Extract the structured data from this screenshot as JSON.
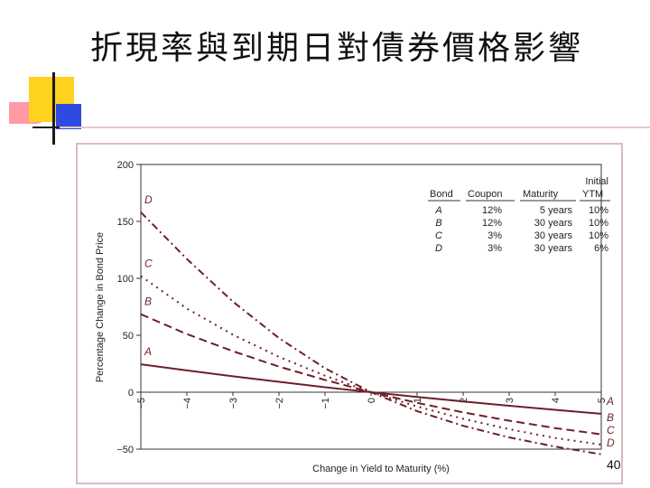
{
  "slide": {
    "title": "折現率與到期日對債券價格影響",
    "page_number": "40"
  },
  "colors": {
    "curve": "#6e1f2a",
    "deco_yellow": "#ffd21f",
    "deco_blue": "#2d4be0",
    "deco_pink": "#ff9aa6"
  },
  "chart_data": {
    "type": "line",
    "title": "",
    "xlabel": "Change in Yield to Maturity (%)",
    "ylabel": "Percentage Change in Bond Price",
    "xlim": [
      -5,
      5
    ],
    "ylim": [
      -50,
      200
    ],
    "grid": false,
    "x_ticks": [
      -5,
      -4,
      -3,
      -2,
      -1,
      0,
      1,
      2,
      3,
      4,
      5
    ],
    "x_tick_labels": [
      "−5",
      "−4",
      "−3",
      "−2",
      "−1",
      "0",
      "1",
      "2",
      "3",
      "4",
      "5"
    ],
    "y_ticks": [
      200,
      150,
      100,
      50,
      0,
      -50
    ],
    "y_tick_labels": [
      "200",
      "150",
      "100",
      "50",
      "0",
      "−50"
    ],
    "table": {
      "headers": [
        "Bond",
        "Coupon",
        "Maturity",
        "Initial YTM"
      ],
      "header_line1": [
        "",
        "",
        "",
        "Initial"
      ],
      "header_line2": [
        "Bond",
        "Coupon",
        "Maturity",
        "YTM"
      ],
      "rows": [
        [
          "A",
          "12%",
          "5 years",
          "10%"
        ],
        [
          "B",
          "12%",
          "30 years",
          "10%"
        ],
        [
          "C",
          "3%",
          "30 years",
          "10%"
        ],
        [
          "D",
          "3%",
          "30 years",
          "6%"
        ]
      ]
    },
    "series": [
      {
        "name": "A",
        "dash": "solid",
        "x": [
          -5,
          -4,
          -3,
          -2,
          -1,
          0,
          1,
          2,
          3,
          4,
          5
        ],
        "y": [
          24.5,
          19.1,
          14.0,
          9.1,
          4.4,
          0,
          -4.2,
          -8.1,
          -11.9,
          -15.5,
          -19.0
        ]
      },
      {
        "name": "B",
        "dash": "dashed",
        "x": [
          -5,
          -4,
          -3,
          -2,
          -1,
          0,
          1,
          2,
          3,
          4,
          5
        ],
        "y": [
          68.5,
          51.0,
          36.0,
          22.5,
          10.8,
          0,
          -9.4,
          -17.7,
          -25.0,
          -31.5,
          -37.0
        ]
      },
      {
        "name": "C",
        "dash": "dotted",
        "x": [
          -5,
          -4,
          -3,
          -2,
          -1,
          0,
          1,
          2,
          3,
          4,
          5
        ],
        "y": [
          102.0,
          73.5,
          50.5,
          31.0,
          14.5,
          0,
          -12.5,
          -23.3,
          -32.5,
          -40.2,
          -46.0
        ]
      },
      {
        "name": "D",
        "dash": "dashdot",
        "x": [
          -5,
          -4,
          -3,
          -2,
          -1,
          0,
          1,
          2,
          3,
          4,
          5
        ],
        "y": [
          158.0,
          117.0,
          79.5,
          47.5,
          21.0,
          0,
          -16.6,
          -29.5,
          -39.7,
          -47.8,
          -54.5
        ]
      }
    ]
  }
}
